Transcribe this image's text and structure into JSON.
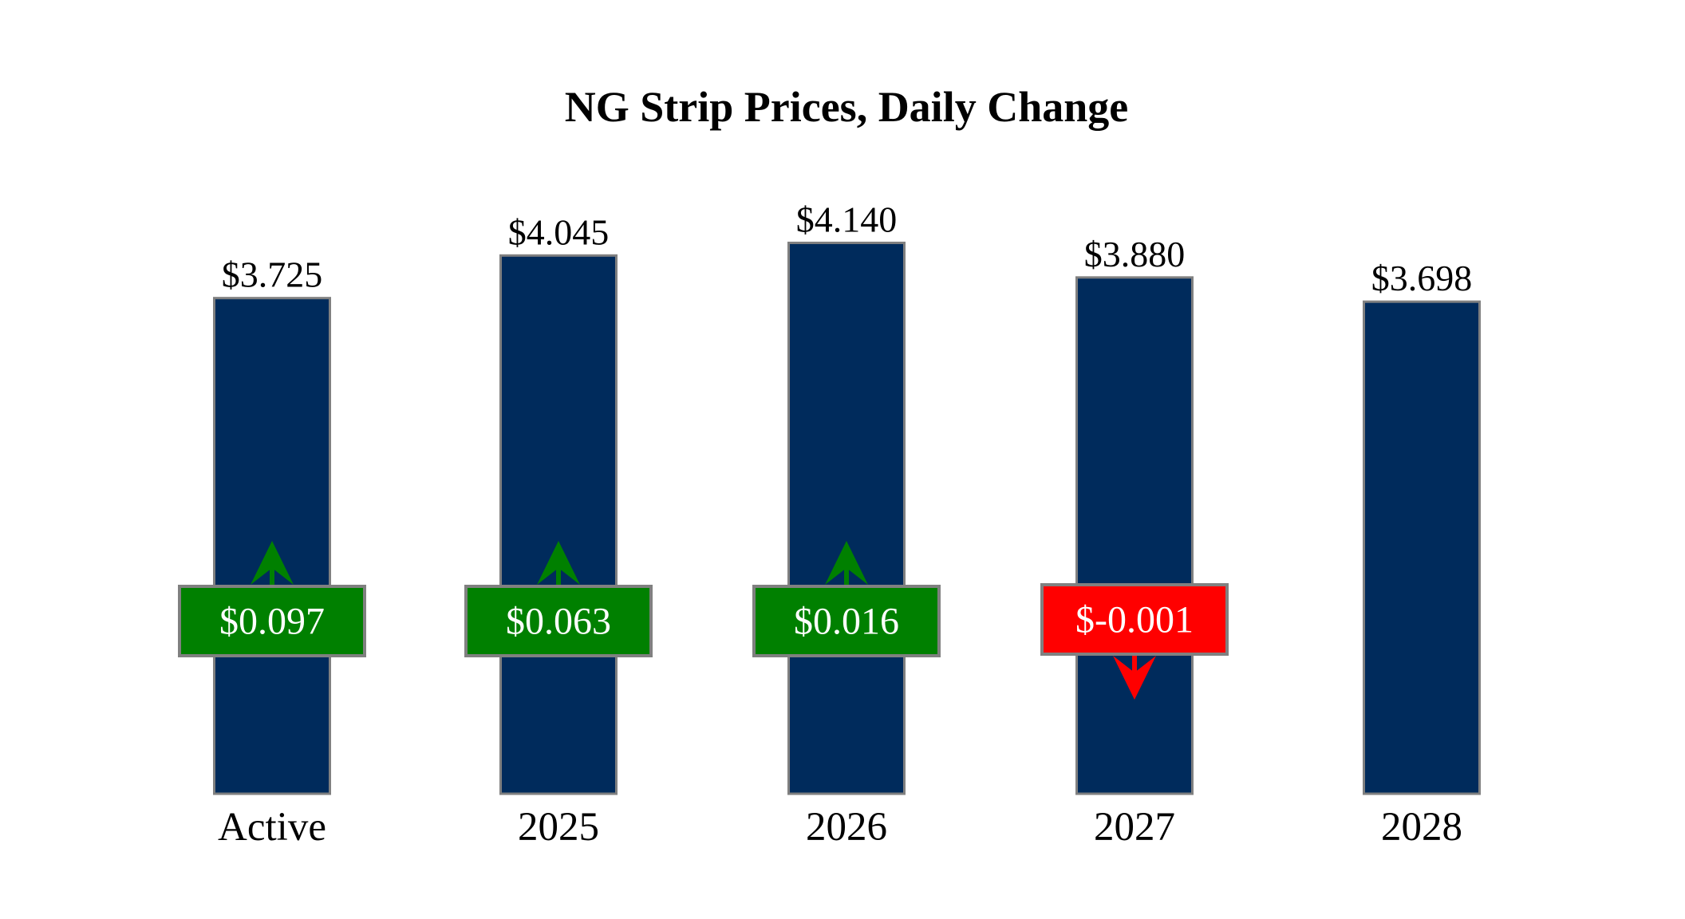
{
  "chart_data": {
    "type": "bar",
    "title": "NG Strip Prices, Daily Change",
    "xlabel": "",
    "ylabel": "",
    "ylim": [
      0,
      4.5
    ],
    "grid": false,
    "categories": [
      "Active",
      "2025",
      "2026",
      "2027",
      "2028"
    ],
    "values": [
      3.725,
      4.045,
      4.14,
      3.88,
      3.698
    ],
    "value_labels": [
      "$3.725",
      "$4.045",
      "$4.140",
      "$3.880",
      "$3.698"
    ],
    "changes": [
      0.097,
      0.063,
      0.016,
      -0.001,
      null
    ],
    "change_labels": [
      "$0.097",
      "$0.063",
      "$0.016",
      "$-0.001",
      null
    ],
    "colors": {
      "bar": "#002b5c",
      "bar_border": "#808080",
      "positive": "#008000",
      "negative": "#ff0000",
      "change_text": "#ffffff"
    }
  }
}
